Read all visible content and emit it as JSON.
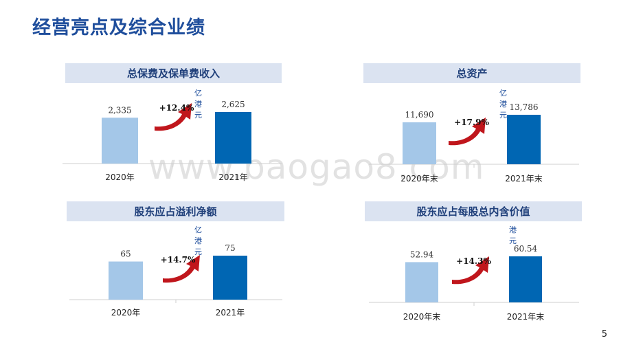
{
  "page": {
    "title": "经营亮点及综合业绩",
    "page_number": "5",
    "watermark": "www.baogao8.com"
  },
  "colors": {
    "bar_prev": "#a4c7e8",
    "bar_curr": "#0066b3",
    "arrow": "#c0161c",
    "header_bg": "#dbe3f1"
  },
  "chart_data": [
    {
      "type": "bar",
      "title": "总保费及保单费收入",
      "unit": "亿港元",
      "categories": [
        "2020年",
        "2021年"
      ],
      "values": [
        2335,
        2625
      ],
      "value_labels": [
        "2,335",
        "2,625"
      ],
      "growth": "+12.4%",
      "ylim": [
        0,
        2625
      ]
    },
    {
      "type": "bar",
      "title": "总资产",
      "unit": "亿港元",
      "categories": [
        "2020年末",
        "2021年末"
      ],
      "values": [
        11690,
        13786
      ],
      "value_labels": [
        "11,690",
        "13,786"
      ],
      "growth": "+17.9%",
      "ylim": [
        0,
        13786
      ]
    },
    {
      "type": "bar",
      "title": "股东应占溢利净额",
      "unit": "亿港元",
      "categories": [
        "2020年",
        "2021年"
      ],
      "values": [
        65,
        75
      ],
      "value_labels": [
        "65",
        "75"
      ],
      "growth": "+14.7%",
      "ylim": [
        0,
        75
      ]
    },
    {
      "type": "bar",
      "title": "股东应占每股总内含价值",
      "unit": "港元",
      "categories": [
        "2020年末",
        "2021年末"
      ],
      "values": [
        52.94,
        60.54
      ],
      "value_labels": [
        "52.94",
        "60.54"
      ],
      "growth": "+14.3%",
      "ylim": [
        0,
        60.54
      ]
    }
  ]
}
